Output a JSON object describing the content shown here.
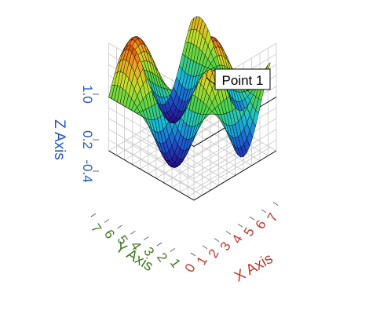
{
  "chart_data": {
    "type": "surface3d",
    "title": "",
    "surface_function": "sin(x)*cos(y)",
    "x": {
      "label": "X Axis",
      "ticks": [
        0,
        1,
        2,
        3,
        4,
        5,
        6,
        7
      ],
      "range": [
        0,
        7
      ],
      "color": "#c0392b"
    },
    "y": {
      "label": "Y Axis",
      "ticks": [
        1,
        2,
        3,
        4,
        5,
        6,
        7
      ],
      "range": [
        0.5,
        7
      ],
      "color": "#3d7a1f"
    },
    "z": {
      "label": "Z Axis",
      "ticks": [
        "1.0",
        "0.2",
        "-0.4"
      ],
      "tick_values": [
        1.0,
        0.2,
        -0.4
      ],
      "range": [
        -1,
        1
      ],
      "color": "#2255cc"
    },
    "grid": true,
    "colormap": [
      "#2a0a8c",
      "#1d5cd6",
      "#19c2d8",
      "#4fd64a",
      "#c4e02a",
      "#f2a020",
      "#d1300c"
    ],
    "annotation": {
      "text": "Point 1",
      "x": 1.57,
      "y": 0.5,
      "z": 1.0
    }
  }
}
